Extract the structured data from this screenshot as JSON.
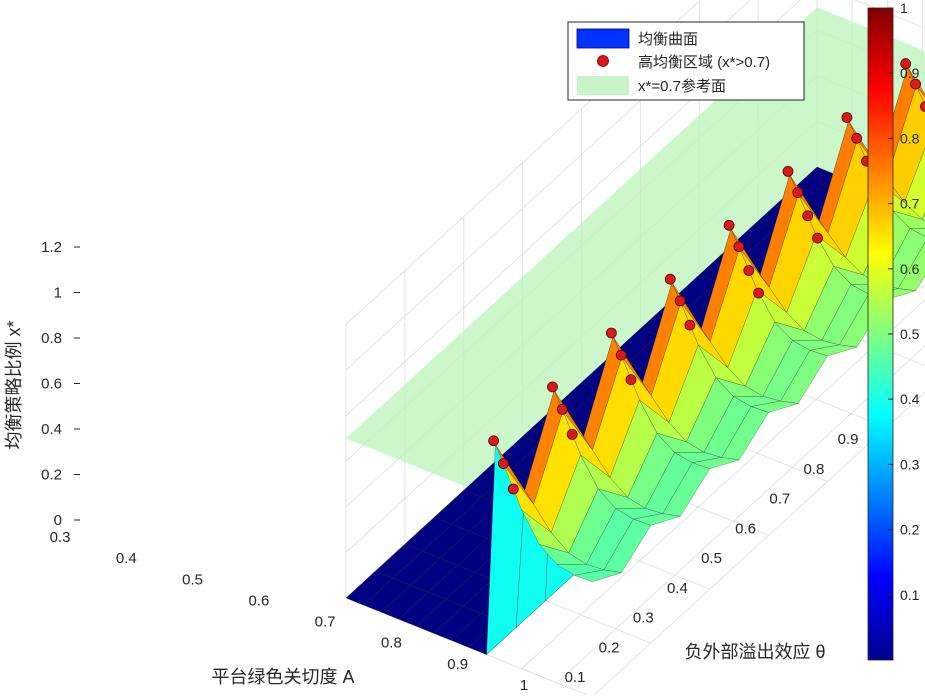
{
  "chart_data": {
    "type": "surface3d",
    "xlabel": "平台绿色关切度 A",
    "ylabel": "负外部溢出效应 θ",
    "zlabel": "均衡策略比例 x*",
    "x_ticks": [
      "0.3",
      "0.4",
      "0.5",
      "0.6",
      "0.7",
      "0.8",
      "0.9",
      "1"
    ],
    "y_ticks": [
      "0.1",
      "0.2",
      "0.3",
      "0.4",
      "0.5",
      "0.6",
      "0.7",
      "0.8",
      "0.9"
    ],
    "z_ticks": [
      "0",
      "0.2",
      "0.4",
      "0.6",
      "0.8",
      "1",
      "1.2"
    ],
    "xlim": [
      0.3,
      1.0
    ],
    "ylim": [
      0.1,
      0.9
    ],
    "zlim": [
      0,
      1.2
    ],
    "grid": true,
    "colormap": "jet",
    "colorbar": {
      "range": [
        0,
        1
      ],
      "ticks": [
        "0.1",
        "0.2",
        "0.3",
        "0.4",
        "0.5",
        "0.6",
        "0.7",
        "0.8",
        "0.9",
        "1"
      ]
    },
    "legend": {
      "placement": "top-right",
      "items": [
        {
          "label": "均衡曲面",
          "kind": "patch",
          "color": "#0033ff"
        },
        {
          "label": "高均衡区域 (x*>0.7)",
          "kind": "marker",
          "color": "#e0141a"
        },
        {
          "label": "x*=0.7参考面",
          "kind": "patch",
          "color": "#c8f5c8"
        }
      ]
    },
    "reference_plane": {
      "z": 0.7,
      "color": "#bdf5bd"
    },
    "high_region": {
      "threshold": 0.7,
      "marker_color": "#d81b1b"
    },
    "surface": {
      "description_values": {
        "A_grid": [
          0.3,
          0.35,
          0.4,
          0.45,
          0.5,
          0.55,
          0.6,
          0.65,
          0.7,
          0.725,
          0.75,
          0.8,
          0.85,
          0.9,
          0.95,
          1.0
        ],
        "theta_grid": [
          0.1,
          0.15,
          0.2,
          0.25,
          0.3,
          0.35,
          0.4,
          0.45,
          0.5,
          0.55,
          0.6,
          0.65,
          0.7,
          0.75,
          0.8,
          0.85,
          0.9
        ],
        "low_value": 0.0,
        "rise_A": 0.72,
        "peak_value": 0.95
      }
    }
  }
}
